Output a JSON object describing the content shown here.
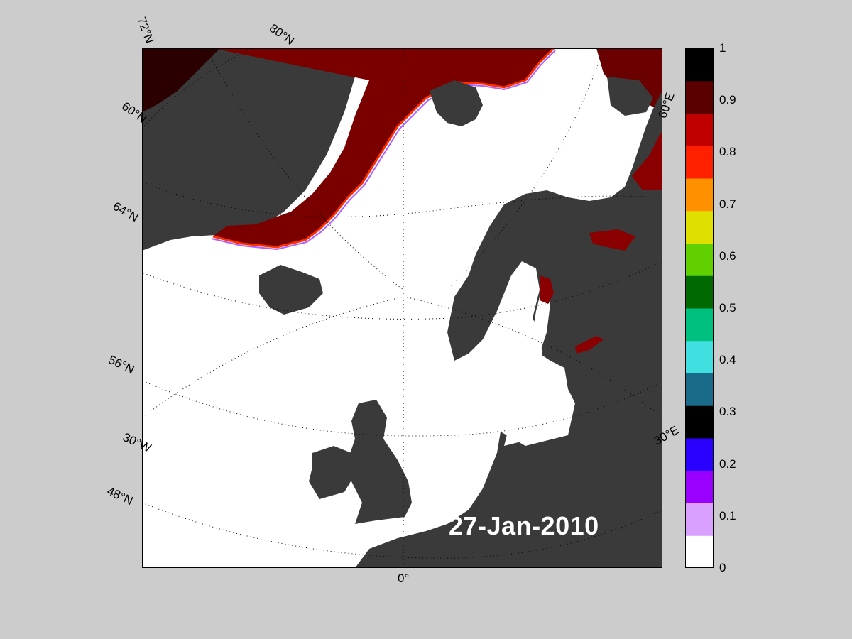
{
  "map": {
    "date": "27-Jan-2010",
    "labels": {
      "lat_72": "72°N",
      "lat_80": "80°N",
      "lat_60": "60°N",
      "lat_64": "64°N",
      "lat_56": "56°N",
      "lat_48": "48°N",
      "lon_30w": "30°W",
      "lon_0": "0°",
      "lon_30e": "30°E",
      "lon_60e": "60°E"
    },
    "colors": {
      "land": "#3a3a3a",
      "ocean_open": "#ffffff",
      "land_ice": "#888888",
      "frame": "#000000",
      "page_bg": "#cccccc",
      "label_text": "#ffffff"
    }
  },
  "colorbar": {
    "ticks": [
      "1",
      "0.9",
      "0.8",
      "0.7",
      "0.6",
      "0.5",
      "0.4",
      "0.3",
      "0.2",
      "0.1",
      "0"
    ],
    "colormap": [
      "#ffffff",
      "#d9a0ff",
      "#9a00ff",
      "#2a00ff",
      "#000000",
      "#1a6a8a",
      "#40e0e0",
      "#00c080",
      "#006a00",
      "#60d000",
      "#e0e000",
      "#ff9000",
      "#ff2000",
      "#c00000",
      "#5a0000",
      "#000000"
    ]
  }
}
